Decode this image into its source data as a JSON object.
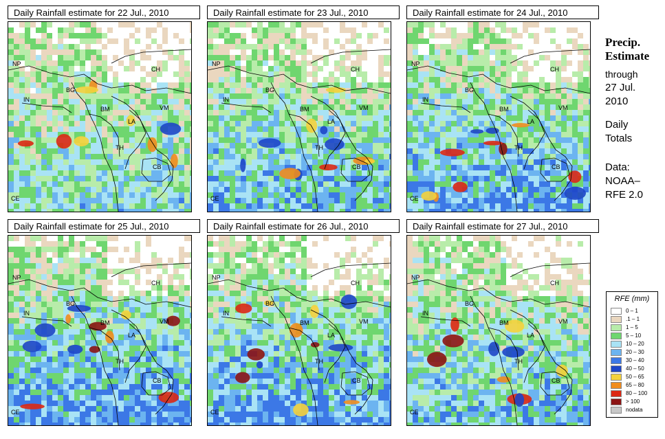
{
  "panels": [
    {
      "title": "Daily Rainfall estimate for  22 Jul., 2010",
      "intensity": 0.35,
      "seed": 22
    },
    {
      "title": "Daily Rainfall estimate for  23 Jul., 2010",
      "intensity": 0.5,
      "seed": 23
    },
    {
      "title": "Daily Rainfall estimate for  24 Jul., 2010",
      "intensity": 0.55,
      "seed": 24
    },
    {
      "title": "Daily Rainfall estimate for  25 Jul., 2010",
      "intensity": 0.6,
      "seed": 25
    },
    {
      "title": "Daily Rainfall estimate for  26 Jul., 2010",
      "intensity": 0.6,
      "seed": 26
    },
    {
      "title": "Daily Rainfall estimate for  27 Jul., 2010",
      "intensity": 0.45,
      "seed": 27
    }
  ],
  "region_labels": [
    "NP",
    "CH",
    "BG",
    "IN",
    "BM",
    "VM",
    "LA",
    "TH",
    "CB",
    "CE"
  ],
  "side": {
    "title_line1": "Precip.",
    "title_line2": "Estimate",
    "through": "through",
    "date_line1": "27 Jul.",
    "date_line2": "2010",
    "daily_line1": "Daily",
    "daily_line2": "Totals",
    "data_line1": "Data:",
    "data_line2": "NOAA–",
    "data_line3": "RFE 2.0"
  },
  "legend": {
    "title": "RFE (mm)",
    "items": [
      {
        "label": "0 – 1",
        "color": "#ffffff"
      },
      {
        "label": ".1 – 1",
        "color": "#ead7bf"
      },
      {
        "label": "1 – 5",
        "color": "#b8ecaa"
      },
      {
        "label": "5 – 10",
        "color": "#6fd66f"
      },
      {
        "label": "10 – 20",
        "color": "#a9e3f5"
      },
      {
        "label": "20 – 30",
        "color": "#6cb4f0"
      },
      {
        "label": "30 – 40",
        "color": "#3c78e6"
      },
      {
        "label": "40 – 50",
        "color": "#1e46c8"
      },
      {
        "label": "50 – 65",
        "color": "#f5d23c"
      },
      {
        "label": "65 – 80",
        "color": "#f08c1e"
      },
      {
        "label": "80 – 100",
        "color": "#dc2814"
      },
      {
        "label": "> 100",
        "color": "#8c1414"
      },
      {
        "label": "nodata",
        "color": "#c8c8c8"
      }
    ]
  }
}
